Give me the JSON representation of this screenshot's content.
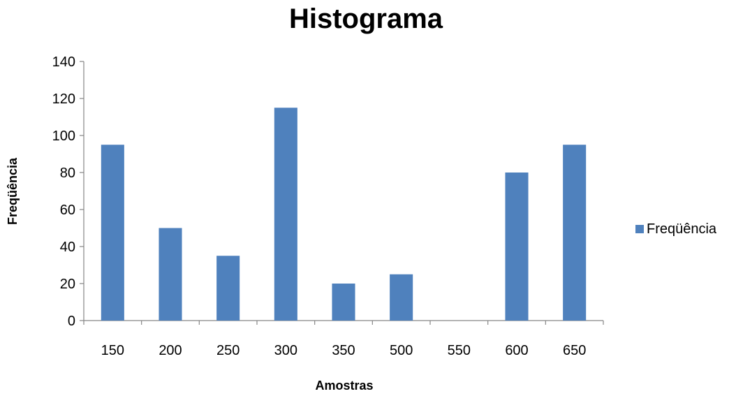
{
  "chart_data": {
    "type": "bar",
    "title": "Histograma",
    "xlabel": "Amostras",
    "ylabel": "Freqüência",
    "categories": [
      "150",
      "200",
      "250",
      "300",
      "350",
      "500",
      "550",
      "600",
      "650"
    ],
    "series": [
      {
        "name": "Freqüência",
        "values": [
          95,
          50,
          35,
          115,
          20,
          25,
          0,
          80,
          95
        ],
        "color": "#4F81BD"
      }
    ],
    "ylim": [
      0,
      140
    ],
    "yticks": [
      0,
      20,
      40,
      60,
      80,
      100,
      120,
      140
    ],
    "grid": false,
    "legend_position": "right"
  }
}
